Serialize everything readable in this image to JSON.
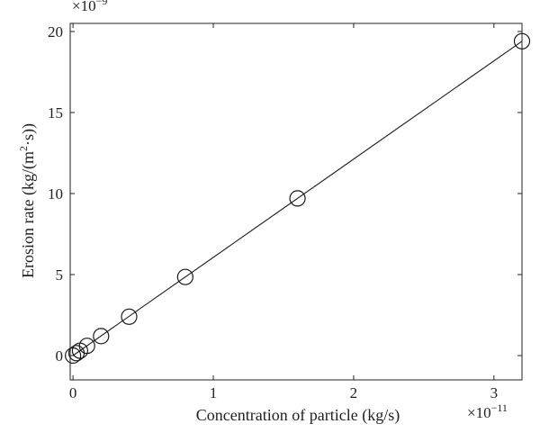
{
  "chart_data": {
    "type": "scatter",
    "xlabel": "Concentration of particle (kg/s)",
    "ylabel_main": "Erosion rate (kg/(m",
    "ylabel_sup": "2",
    "ylabel_tail": "·s))",
    "x_multiplier_base": "×10",
    "x_multiplier_exp": "−11",
    "y_multiplier_base": "×10",
    "y_multiplier_exp": "−9",
    "xlim": [
      -0.02,
      3.2
    ],
    "ylim": [
      -1.5,
      20.5
    ],
    "x_ticks": [
      0,
      1,
      2,
      3
    ],
    "x_tick_labels": [
      "0",
      "1",
      "2",
      "3"
    ],
    "y_ticks": [
      0,
      5,
      10,
      15,
      20
    ],
    "y_tick_labels": [
      "0",
      "5",
      "10",
      "15",
      "20"
    ],
    "grid": false,
    "marker": "circle-open",
    "points_x": [
      0.0,
      0.025,
      0.05,
      0.1,
      0.2,
      0.4,
      0.8,
      1.6,
      3.2
    ],
    "points_y": [
      0.0,
      0.15,
      0.3,
      0.6,
      1.2,
      2.4,
      4.85,
      9.7,
      19.4
    ],
    "fit_line": {
      "x": [
        0,
        3.2
      ],
      "y": [
        0,
        19.4
      ]
    }
  }
}
